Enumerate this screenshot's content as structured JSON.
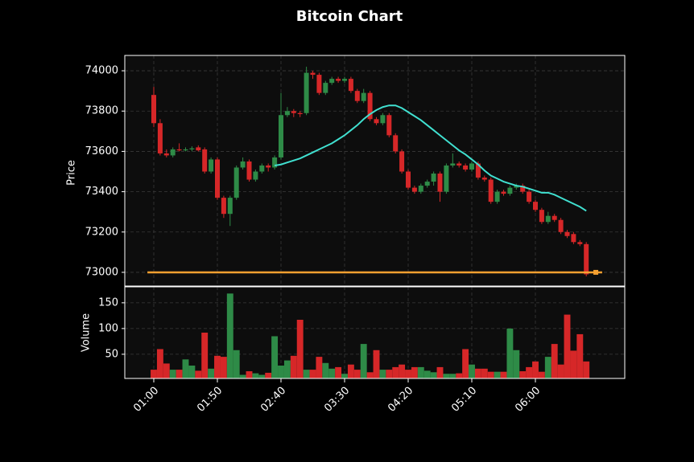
{
  "chart_data": [
    {
      "type": "candlestick",
      "title": "Bitcoin Chart",
      "ylabel": "Price",
      "x": [
        "01:00",
        "01:05",
        "01:10",
        "01:15",
        "01:20",
        "01:25",
        "01:30",
        "01:35",
        "01:40",
        "01:45",
        "01:50",
        "01:55",
        "02:00",
        "02:05",
        "02:10",
        "02:15",
        "02:20",
        "02:25",
        "02:30",
        "02:35",
        "02:40",
        "02:45",
        "02:50",
        "02:55",
        "03:00",
        "03:05",
        "03:10",
        "03:15",
        "03:20",
        "03:25",
        "03:30",
        "03:35",
        "03:40",
        "03:45",
        "03:50",
        "03:55",
        "04:00",
        "04:05",
        "04:10",
        "04:15",
        "04:20",
        "04:25",
        "04:30",
        "04:35",
        "04:40",
        "04:45",
        "04:50",
        "04:55",
        "05:00",
        "05:05",
        "05:10",
        "05:15",
        "05:20",
        "05:25",
        "05:30",
        "05:35",
        "05:40",
        "05:45",
        "05:50",
        "05:55",
        "06:00",
        "06:05",
        "06:10",
        "06:15",
        "06:20",
        "06:25",
        "06:30",
        "06:35",
        "06:40"
      ],
      "open": [
        73880,
        73740,
        73590,
        73580,
        73610,
        73605,
        73610,
        73620,
        73610,
        73500,
        73560,
        73370,
        73290,
        73370,
        73520,
        73550,
        73460,
        73500,
        73530,
        73520,
        73570,
        73780,
        73800,
        73790,
        73790,
        73990,
        73980,
        73890,
        73940,
        73960,
        73950,
        73960,
        73900,
        73850,
        73890,
        73760,
        73740,
        73780,
        73680,
        73600,
        73500,
        73420,
        73400,
        73430,
        73450,
        73490,
        73400,
        73530,
        73540,
        73530,
        73510,
        73540,
        73470,
        73460,
        73350,
        73400,
        73390,
        73420,
        73430,
        73400,
        73350,
        73310,
        73250,
        73280,
        73260,
        73200,
        73190,
        73150,
        73140
      ],
      "high": [
        73920,
        73760,
        73610,
        73620,
        73640,
        73620,
        73625,
        73630,
        73620,
        73570,
        73570,
        73380,
        73380,
        73530,
        73570,
        73560,
        73510,
        73540,
        73540,
        73580,
        73890,
        73820,
        73810,
        73800,
        74020,
        74000,
        73990,
        73950,
        73970,
        73970,
        73970,
        73970,
        73910,
        73910,
        73900,
        73770,
        73790,
        73790,
        73690,
        73610,
        73510,
        73430,
        73440,
        73460,
        73500,
        73500,
        73540,
        73590,
        73550,
        73540,
        73550,
        73550,
        73480,
        73470,
        73410,
        73410,
        73430,
        73440,
        73440,
        73410,
        73360,
        73320,
        73300,
        73290,
        73270,
        73210,
        73200,
        73160,
        73150
      ],
      "low": [
        73720,
        73580,
        73570,
        73570,
        73600,
        73600,
        73600,
        73600,
        73490,
        73490,
        73360,
        73270,
        73230,
        73360,
        73510,
        73450,
        73450,
        73490,
        73500,
        73510,
        73560,
        73770,
        73770,
        73770,
        73780,
        73960,
        73880,
        73880,
        73930,
        73940,
        73940,
        73890,
        73840,
        73840,
        73750,
        73730,
        73730,
        73670,
        73590,
        73490,
        73410,
        73390,
        73390,
        73420,
        73430,
        73350,
        73390,
        73520,
        73520,
        73500,
        73500,
        73460,
        73450,
        73340,
        73340,
        73380,
        73380,
        73410,
        73390,
        73340,
        73300,
        73240,
        73240,
        73250,
        73190,
        73170,
        73140,
        73130,
        72980
      ],
      "close": [
        73740,
        73590,
        73580,
        73610,
        73605,
        73610,
        73615,
        73605,
        73500,
        73560,
        73370,
        73290,
        73370,
        73520,
        73550,
        73460,
        73500,
        73530,
        73520,
        73570,
        73780,
        73800,
        73790,
        73785,
        73990,
        73980,
        73890,
        73940,
        73960,
        73950,
        73960,
        73900,
        73850,
        73890,
        73760,
        73740,
        73780,
        73680,
        73600,
        73500,
        73420,
        73400,
        73430,
        73450,
        73490,
        73400,
        73530,
        73540,
        73530,
        73510,
        73540,
        73470,
        73460,
        73350,
        73400,
        73390,
        73420,
        73430,
        73400,
        73350,
        73310,
        73250,
        73280,
        73260,
        73200,
        73180,
        73150,
        73140,
        72990
      ],
      "up_color": "#2e8b47",
      "down_color": "#d62728",
      "series": [
        {
          "color": "#40e0d0",
          "values": [
            null,
            null,
            null,
            null,
            null,
            null,
            null,
            null,
            null,
            null,
            null,
            null,
            null,
            null,
            null,
            null,
            null,
            null,
            null,
            73530,
            73535,
            73545,
            73555,
            73565,
            73580,
            73595,
            73610,
            73625,
            73640,
            73660,
            73680,
            73705,
            73730,
            73760,
            73785,
            73805,
            73820,
            73828,
            73828,
            73815,
            73795,
            73775,
            73755,
            73730,
            73705,
            73680,
            73655,
            73630,
            73605,
            73585,
            73560,
            73535,
            73505,
            73480,
            73465,
            73450,
            73440,
            73430,
            73425,
            73415,
            73405,
            73395,
            73395,
            73385,
            73370,
            73355,
            73340,
            73325,
            73305
          ]
        }
      ],
      "hline": {
        "value": 73000,
        "color": "#f5a030"
      },
      "ylim": [
        72932,
        74076
      ],
      "yticks": [
        73000,
        73200,
        73400,
        73600,
        73800,
        74000
      ],
      "xticks": [
        "01:00",
        "01:50",
        "02:40",
        "03:30",
        "04:20",
        "05:10",
        "06:00"
      ],
      "grid": true
    },
    {
      "type": "bar",
      "ylabel": "Volume",
      "values": [
        20,
        60,
        32,
        20,
        20,
        40,
        28,
        18,
        92,
        22,
        47,
        45,
        168,
        58,
        10,
        17,
        13,
        10,
        14,
        85,
        28,
        38,
        47,
        117,
        20,
        20,
        45,
        33,
        22,
        25,
        12,
        30,
        20,
        70,
        15,
        58,
        20,
        20,
        25,
        30,
        20,
        25,
        25,
        18,
        15,
        25,
        12,
        12,
        13,
        60,
        30,
        22,
        22,
        16,
        16,
        16,
        100,
        58,
        17,
        25,
        36,
        16,
        45,
        70,
        30,
        127,
        57,
        89,
        36
      ],
      "ylim": [
        3,
        181
      ],
      "yticks": [
        50,
        100,
        150
      ],
      "grid": true
    }
  ]
}
